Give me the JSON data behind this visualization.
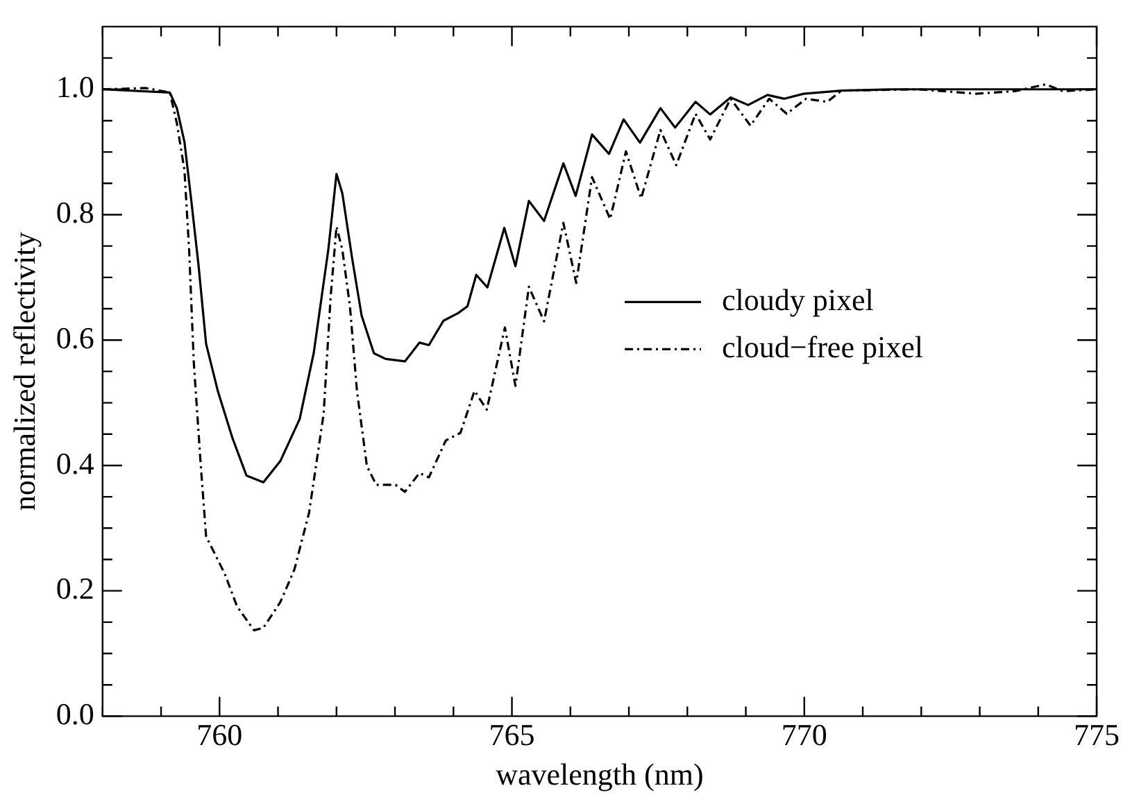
{
  "chart_data": {
    "type": "line",
    "xlabel": "wavelength (nm)",
    "ylabel": "normalized reflectivity",
    "xlim": [
      758,
      775
    ],
    "ylim": [
      0,
      1.1
    ],
    "xticks": [
      {
        "value": 758,
        "label": null
      },
      {
        "value": 759,
        "label": null
      },
      760,
      {
        "value": 761,
        "label": null
      },
      {
        "value": 762,
        "label": null
      },
      {
        "value": 763,
        "label": null
      },
      {
        "value": 764,
        "label": null
      },
      765,
      {
        "value": 766,
        "label": null
      },
      {
        "value": 767,
        "label": null
      },
      {
        "value": 768,
        "label": null
      },
      {
        "value": 769,
        "label": null
      },
      770,
      {
        "value": 771,
        "label": null
      },
      {
        "value": 772,
        "label": null
      },
      {
        "value": 773,
        "label": null
      },
      {
        "value": 774,
        "label": null
      },
      775
    ],
    "yticks": [
      {
        "value": 0,
        "label": "0.0"
      },
      {
        "value": 0.05,
        "label": null
      },
      {
        "value": 0.1,
        "label": null
      },
      {
        "value": 0.15,
        "label": null
      },
      0.2,
      {
        "value": 0.25,
        "label": null
      },
      {
        "value": 0.3,
        "label": null
      },
      {
        "value": 0.35,
        "label": null
      },
      0.4,
      {
        "value": 0.45,
        "label": null
      },
      {
        "value": 0.5,
        "label": null
      },
      {
        "value": 0.55,
        "label": null
      },
      0.6,
      {
        "value": 0.65,
        "label": null
      },
      {
        "value": 0.7,
        "label": null
      },
      {
        "value": 0.75,
        "label": null
      },
      0.8,
      {
        "value": 0.85,
        "label": null
      },
      {
        "value": 0.9,
        "label": null
      },
      {
        "value": 0.95,
        "label": null
      },
      {
        "value": 1,
        "label": "1.0"
      },
      {
        "value": 1.05,
        "label": null
      }
    ],
    "legend": "right",
    "marker": "none",
    "series": [
      {
        "name": "cloudy pixel",
        "color": "#000000",
        "line_style": "solid",
        "x": [
          758,
          759.15,
          759.27,
          759.4,
          759.52,
          759.64,
          759.77,
          759.97,
          760.22,
          760.46,
          760.75,
          761.04,
          761.37,
          761.61,
          761.86,
          762,
          762.1,
          762.27,
          762.43,
          762.64,
          762.84,
          763.17,
          763.42,
          763.58,
          763.83,
          764.08,
          764.24,
          764.39,
          764.58,
          764.87,
          765.06,
          765.29,
          765.55,
          765.88,
          766.09,
          766.37,
          766.66,
          766.91,
          767.19,
          767.54,
          767.79,
          768.14,
          768.39,
          768.74,
          769.04,
          769.37,
          769.66,
          769.99,
          770.64,
          771.55,
          775
        ],
        "values": [
          1,
          0.995,
          0.97,
          0.916,
          0.82,
          0.72,
          0.594,
          0.519,
          0.444,
          0.384,
          0.373,
          0.407,
          0.474,
          0.579,
          0.744,
          0.865,
          0.834,
          0.729,
          0.639,
          0.579,
          0.57,
          0.566,
          0.596,
          0.592,
          0.631,
          0.643,
          0.654,
          0.704,
          0.684,
          0.779,
          0.718,
          0.822,
          0.79,
          0.882,
          0.83,
          0.928,
          0.897,
          0.952,
          0.915,
          0.97,
          0.939,
          0.98,
          0.96,
          0.987,
          0.975,
          0.991,
          0.985,
          0.993,
          0.998,
          1,
          1
        ]
      },
      {
        "name": "cloud−free pixel",
        "color": "#000000",
        "line_style": "dashed",
        "x": [
          758,
          758.74,
          759.15,
          759.27,
          759.4,
          759.48,
          759.56,
          759.68,
          759.77,
          759.93,
          760.09,
          760.3,
          760.59,
          760.75,
          761.04,
          761.28,
          761.53,
          761.78,
          761.9,
          762,
          762.1,
          762.23,
          762.35,
          762.52,
          762.68,
          763.01,
          763.17,
          763.42,
          763.58,
          763.87,
          764.12,
          764.36,
          764.57,
          764.88,
          765.06,
          765.29,
          765.55,
          765.88,
          766.1,
          766.37,
          766.68,
          766.95,
          767.21,
          767.54,
          767.81,
          768.14,
          768.39,
          768.74,
          769.08,
          769.4,
          769.7,
          770.03,
          770.39,
          770.64,
          771.96,
          772.94,
          773.6,
          774.13,
          774.42,
          775
        ],
        "values": [
          1,
          1.002,
          0.995,
          0.946,
          0.871,
          0.744,
          0.564,
          0.399,
          0.287,
          0.257,
          0.227,
          0.175,
          0.137,
          0.141,
          0.182,
          0.234,
          0.324,
          0.482,
          0.669,
          0.781,
          0.744,
          0.654,
          0.519,
          0.399,
          0.369,
          0.369,
          0.358,
          0.388,
          0.381,
          0.44,
          0.452,
          0.519,
          0.489,
          0.62,
          0.527,
          0.685,
          0.63,
          0.787,
          0.691,
          0.86,
          0.793,
          0.901,
          0.826,
          0.935,
          0.879,
          0.961,
          0.92,
          0.985,
          0.942,
          0.985,
          0.961,
          0.985,
          0.98,
          0.998,
          1,
          0.993,
          0.997,
          1.008,
          0.997,
          1
        ]
      }
    ]
  }
}
